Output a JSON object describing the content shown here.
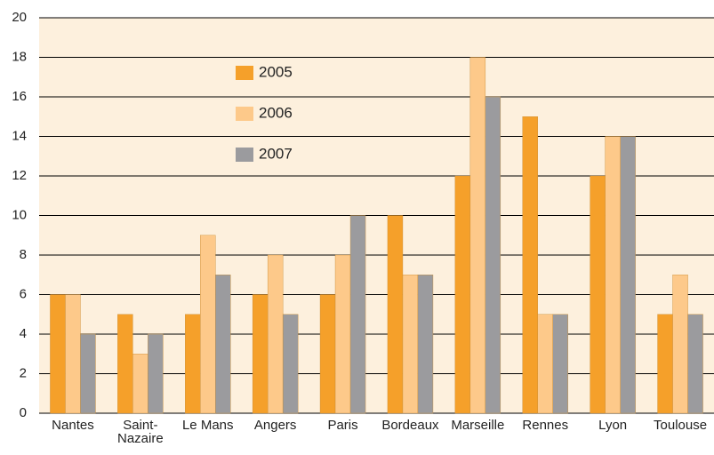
{
  "chart_data": {
    "type": "bar",
    "categories": [
      "Nantes",
      "Saint-\nNazaire",
      "Le Mans",
      "Angers",
      "Paris",
      "Bordeaux",
      "Marseille",
      "Rennes",
      "Lyon",
      "Toulouse"
    ],
    "series": [
      {
        "name": "2005",
        "color": "#f5a02a",
        "values": [
          6,
          5,
          5,
          6,
          6,
          10,
          12,
          15,
          12,
          5
        ]
      },
      {
        "name": "2006",
        "color": "#fdc98a",
        "values": [
          6,
          3,
          9,
          8,
          8,
          7,
          18,
          5,
          14,
          7
        ]
      },
      {
        "name": "2007",
        "color": "#9b9b9e",
        "values": [
          4,
          4,
          7,
          5,
          10,
          7,
          16,
          5,
          14,
          5
        ]
      }
    ],
    "ylim": [
      0,
      20
    ],
    "yticks": [
      0,
      2,
      4,
      6,
      8,
      10,
      12,
      14,
      16,
      18,
      20
    ],
    "grid": true
  }
}
